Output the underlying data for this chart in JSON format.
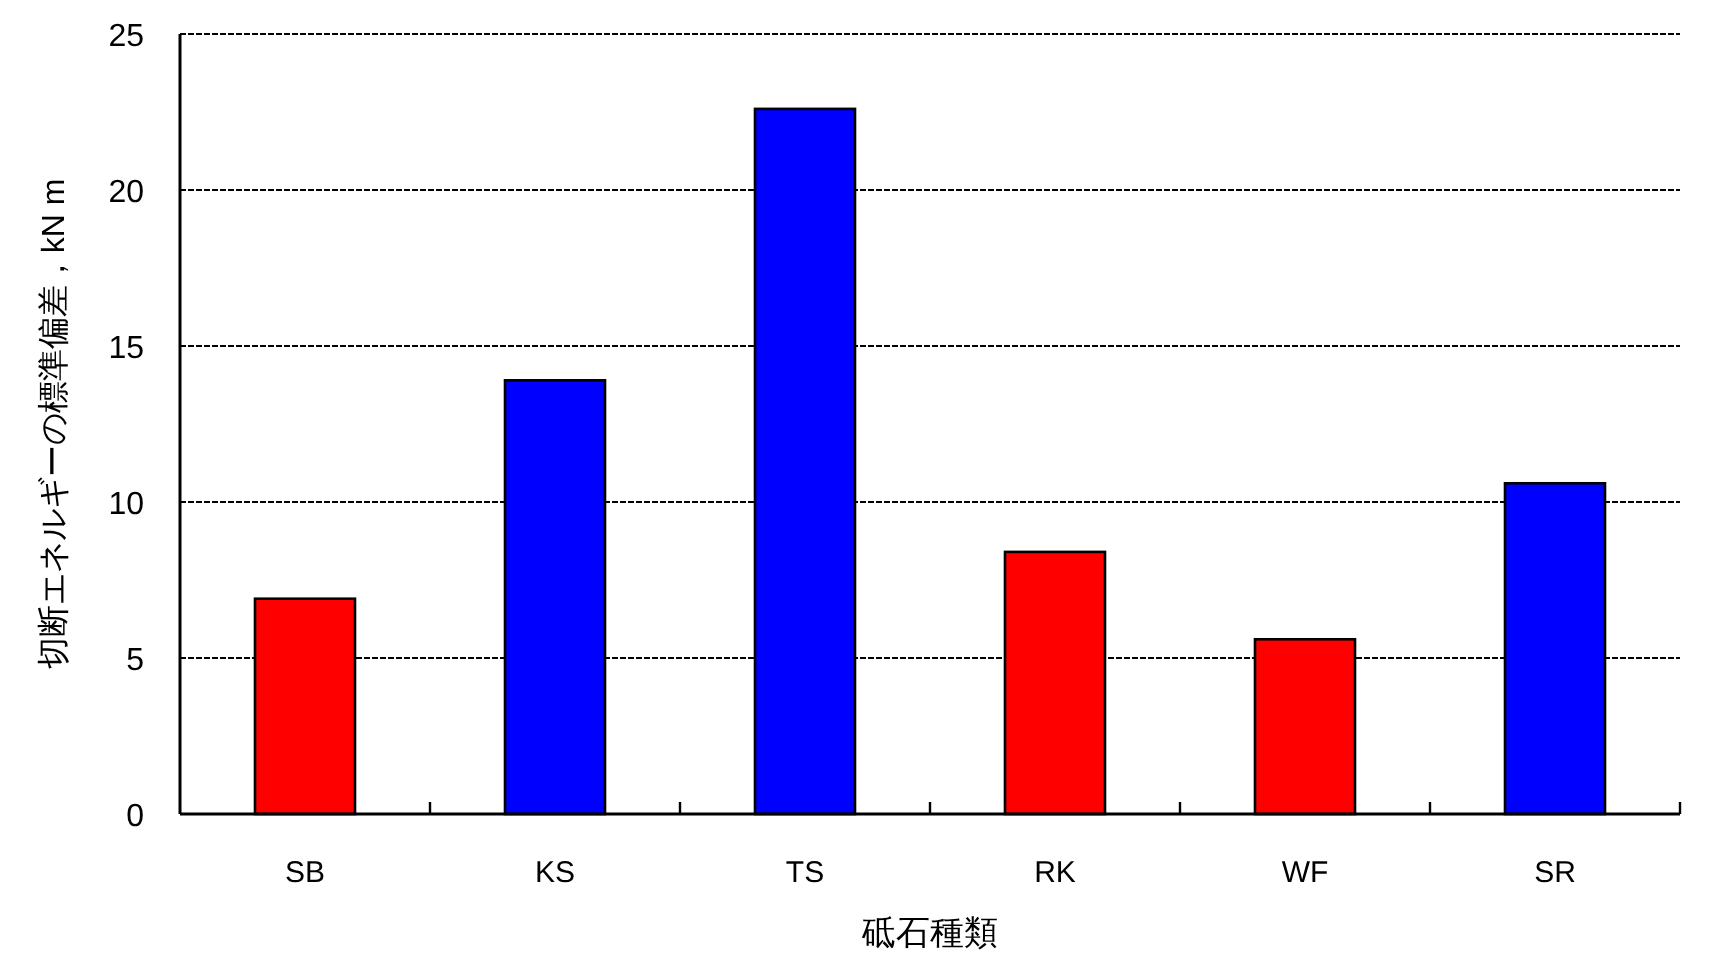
{
  "chart_data": {
    "type": "bar",
    "xlabel": "砥石種類",
    "ylabel": "切断エネルギーの標準偏差，kN m",
    "categories": [
      "SB",
      "KS",
      "TS",
      "RK",
      "WF",
      "SR"
    ],
    "values": [
      6.9,
      13.9,
      22.6,
      8.4,
      5.6,
      10.6
    ],
    "colors": [
      "#ff0000",
      "#0000ff",
      "#0000ff",
      "#ff0000",
      "#ff0000",
      "#0000ff"
    ],
    "ylim": [
      0,
      25
    ],
    "yticks": [
      0,
      5,
      10,
      15,
      20,
      25
    ],
    "grid": "y"
  }
}
